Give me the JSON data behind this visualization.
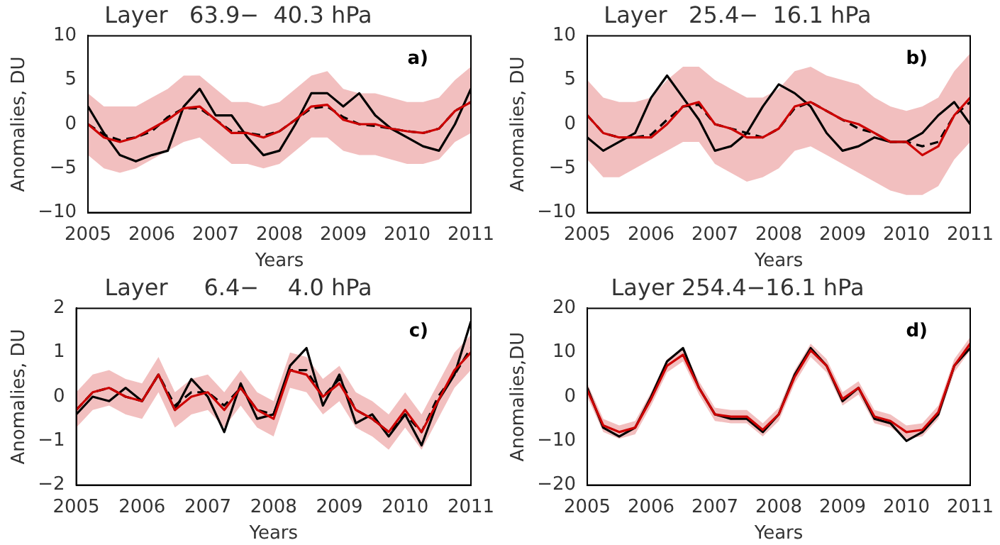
{
  "chart_data": [
    {
      "type": "line",
      "title": "Layer   63.9−  40.3 hPa",
      "xlabel": "Years",
      "ylabel": "Anomalies, DU",
      "annotations": [
        "a)"
      ],
      "legend": false,
      "grid": false,
      "x": [
        2005,
        2005.25,
        2005.5,
        2005.75,
        2006,
        2006.25,
        2006.5,
        2006.75,
        2007,
        2007.25,
        2007.5,
        2007.75,
        2008,
        2008.25,
        2008.5,
        2008.75,
        2009,
        2009.25,
        2009.5,
        2009.75,
        2010,
        2010.25,
        2010.5,
        2010.75,
        2011
      ],
      "xlim": [
        2005,
        2011
      ],
      "xticks": [
        2005,
        2006,
        2007,
        2008,
        2009,
        2010,
        2011
      ],
      "ylim": [
        -10,
        10
      ],
      "yticks": [
        -10,
        -5,
        0,
        5,
        10
      ],
      "series": [
        {
          "color": "#cc0000",
          "values": [
            0,
            -1.5,
            -2,
            -1.5,
            -0.5,
            0.5,
            1.8,
            2,
            0.5,
            -1,
            -1,
            -1.5,
            -0.8,
            0.5,
            2,
            2.2,
            0.5,
            0,
            0,
            -0.5,
            -0.8,
            -1,
            -0.5,
            1.5,
            2.5
          ],
          "lower": [
            -3.5,
            -5,
            -5.5,
            -5,
            -4,
            -3,
            -2,
            -1.5,
            -3,
            -4.5,
            -4.5,
            -5,
            -4.5,
            -3,
            -1.5,
            -1.5,
            -3,
            -3.5,
            -3.5,
            -4,
            -4.5,
            -4.5,
            -4,
            -2,
            -1
          ],
          "upper": [
            3.5,
            2,
            2,
            2,
            3,
            4,
            5.5,
            5.5,
            4,
            2.5,
            2.5,
            2,
            2.5,
            4,
            5.5,
            6,
            4,
            3.5,
            3.5,
            3,
            2.5,
            2.5,
            3,
            5,
            6.5
          ]
        },
        {
          "color": "#000000",
          "line_style": "dashed",
          "values": [
            0,
            -1.2,
            -1.8,
            -1.5,
            -0.8,
            0.8,
            1.8,
            1.8,
            0.5,
            -0.8,
            -1,
            -1.3,
            -0.8,
            0.5,
            1.8,
            2,
            0.8,
            0,
            -0.2,
            -0.5,
            -0.8,
            -1,
            -0.5,
            1.5,
            2.5
          ]
        },
        {
          "color": "#000000",
          "values": [
            2,
            -1,
            -3.5,
            -4.2,
            -3.5,
            -3,
            2,
            4,
            1,
            1,
            -1.5,
            -3.5,
            -3,
            0,
            3.5,
            3.5,
            2,
            3.5,
            1,
            -0.5,
            -1.5,
            -2.5,
            -3,
            0,
            4
          ]
        }
      ]
    },
    {
      "type": "line",
      "title": "Layer   25.4−  16.1 hPa",
      "xlabel": "Years",
      "ylabel": "Anomalies, DU",
      "annotations": [
        "b)"
      ],
      "legend": false,
      "grid": false,
      "x": [
        2005,
        2005.25,
        2005.5,
        2005.75,
        2006,
        2006.25,
        2006.5,
        2006.75,
        2007,
        2007.25,
        2007.5,
        2007.75,
        2008,
        2008.25,
        2008.5,
        2008.75,
        2009,
        2009.25,
        2009.5,
        2009.75,
        2010,
        2010.25,
        2010.5,
        2010.75,
        2011
      ],
      "xlim": [
        2005,
        2011
      ],
      "xticks": [
        2005,
        2006,
        2007,
        2008,
        2009,
        2010,
        2011
      ],
      "ylim": [
        -10,
        10
      ],
      "yticks": [
        -10,
        -5,
        0,
        5,
        10
      ],
      "series": [
        {
          "color": "#cc0000",
          "values": [
            1,
            -1,
            -1.5,
            -1.5,
            -1.5,
            0,
            2,
            2.5,
            0,
            -0.5,
            -1.5,
            -1.5,
            -0.5,
            2,
            2.5,
            1.5,
            0.5,
            0,
            -1,
            -2,
            -2,
            -3.5,
            -2.5,
            1,
            3
          ],
          "lower": [
            -4,
            -6,
            -6,
            -5,
            -4,
            -3,
            -2,
            -2,
            -4.5,
            -5.5,
            -6.5,
            -6,
            -5,
            -3,
            -2.5,
            -3.5,
            -4.5,
            -5.5,
            -6.5,
            -7.5,
            -8,
            -8,
            -7,
            -4,
            -2
          ],
          "upper": [
            5,
            3,
            2.5,
            2.5,
            3,
            5,
            6.5,
            6.5,
            5,
            4,
            3,
            3,
            4,
            6,
            6.5,
            5.5,
            5,
            4.5,
            3,
            2,
            1.5,
            2,
            3,
            6,
            8
          ]
        },
        {
          "color": "#000000",
          "line_style": "dashed",
          "values": [
            1,
            -1,
            -1.5,
            -1.5,
            -1.2,
            0.5,
            2,
            2.2,
            0,
            -0.5,
            -1,
            -1.5,
            -0.5,
            1.8,
            2.5,
            1.5,
            0.5,
            -0.5,
            -1,
            -2,
            -2,
            -2.5,
            -2,
            1,
            2.5
          ]
        },
        {
          "color": "#000000",
          "values": [
            -1.5,
            -3,
            -2,
            -1,
            3,
            5.5,
            3,
            0.5,
            -3,
            -2.5,
            -1,
            2,
            4.5,
            3.5,
            2,
            -1,
            -3,
            -2.5,
            -1.5,
            -2,
            -2,
            -1,
            1,
            2.5,
            0
          ]
        }
      ]
    },
    {
      "type": "line",
      "title": "Layer     6.4−    4.0 hPa",
      "xlabel": "Years",
      "ylabel": "Anomalies, DU",
      "annotations": [
        "c)"
      ],
      "legend": false,
      "grid": false,
      "x": [
        2005,
        2005.25,
        2005.5,
        2005.75,
        2006,
        2006.25,
        2006.5,
        2006.75,
        2007,
        2007.25,
        2007.5,
        2007.75,
        2008,
        2008.25,
        2008.5,
        2008.75,
        2009,
        2009.25,
        2009.5,
        2009.75,
        2010,
        2010.25,
        2010.5,
        2010.75,
        2011
      ],
      "xlim": [
        2005,
        2011
      ],
      "xticks": [
        2005,
        2006,
        2007,
        2008,
        2009,
        2010,
        2011
      ],
      "ylim": [
        -2,
        2
      ],
      "yticks": [
        -2,
        -1,
        0,
        1,
        2
      ],
      "series": [
        {
          "color": "#cc0000",
          "values": [
            -0.3,
            0.1,
            0.2,
            0,
            -0.1,
            0.5,
            -0.3,
            0,
            0.1,
            -0.3,
            0.2,
            -0.3,
            -0.5,
            0.6,
            0.5,
            0,
            0.3,
            -0.3,
            -0.5,
            -0.8,
            -0.3,
            -0.8,
            -0.1,
            0.6,
            1
          ],
          "lower": [
            -0.7,
            -0.3,
            -0.2,
            -0.4,
            -0.5,
            0.1,
            -0.7,
            -0.4,
            -0.3,
            -0.7,
            -0.2,
            -0.7,
            -0.9,
            0.2,
            0.1,
            -0.4,
            -0.1,
            -0.7,
            -0.9,
            -1.2,
            -0.7,
            -1.2,
            -0.5,
            0.2,
            0.6
          ],
          "upper": [
            0.1,
            0.5,
            0.6,
            0.4,
            0.3,
            0.9,
            0.1,
            0.4,
            0.5,
            0.1,
            0.6,
            0.1,
            -0.1,
            1,
            0.9,
            0.4,
            0.7,
            0.1,
            -0.1,
            -0.4,
            0.1,
            -0.4,
            0.3,
            1,
            1.4
          ]
        },
        {
          "color": "#000000",
          "line_style": "dashed",
          "values": [
            -0.3,
            0.1,
            0.2,
            0,
            -0.1,
            0.5,
            -0.2,
            0.1,
            0.1,
            -0.2,
            0.2,
            -0.3,
            -0.4,
            0.6,
            0.6,
            0,
            0.4,
            -0.3,
            -0.5,
            -0.8,
            -0.4,
            -0.8,
            0,
            0.5,
            1.1
          ]
        },
        {
          "color": "#000000",
          "values": [
            -0.4,
            0,
            -0.1,
            0.2,
            -0.1,
            0.5,
            -0.3,
            0.4,
            0,
            -0.8,
            0.3,
            -0.5,
            -0.4,
            0.7,
            1.1,
            -0.2,
            0.5,
            -0.6,
            -0.4,
            -0.9,
            -0.4,
            -1.1,
            -0.1,
            0.5,
            1.7
          ]
        }
      ]
    },
    {
      "type": "line",
      "title": "Layer 254.4−16.1 hPa",
      "xlabel": "Years",
      "ylabel": "Anomalies,DU",
      "annotations": [
        "d)"
      ],
      "legend": false,
      "grid": false,
      "x": [
        2005,
        2005.25,
        2005.5,
        2005.75,
        2006,
        2006.25,
        2006.5,
        2006.75,
        2007,
        2007.25,
        2007.5,
        2007.75,
        2008,
        2008.25,
        2008.5,
        2008.75,
        2009,
        2009.25,
        2009.5,
        2009.75,
        2010,
        2010.25,
        2010.5,
        2010.75,
        2011
      ],
      "xlim": [
        2005,
        2011
      ],
      "xticks": [
        2005,
        2006,
        2007,
        2008,
        2009,
        2010,
        2011
      ],
      "ylim": [
        -20,
        20
      ],
      "yticks": [
        -20,
        -10,
        0,
        10,
        20
      ],
      "series": [
        {
          "color": "#cc0000",
          "values": [
            1.5,
            -6.5,
            -8,
            -7,
            -0.5,
            7,
            9.5,
            2,
            -4,
            -4.5,
            -4.5,
            -7.5,
            -4,
            4.5,
            10.5,
            7,
            -0.5,
            2,
            -4.5,
            -5.5,
            -8,
            -7.5,
            -3.5,
            7,
            12
          ],
          "lower": [
            0,
            -8,
            -9.5,
            -8.5,
            -2,
            5.5,
            8,
            0.5,
            -5.5,
            -6,
            -6,
            -9,
            -5.5,
            3,
            9,
            5.5,
            -2,
            0.5,
            -6,
            -7,
            -9.5,
            -9,
            -5,
            5.5,
            10.5
          ],
          "upper": [
            3,
            -5,
            -6.5,
            -5.5,
            1,
            8.5,
            11,
            3.5,
            -2.5,
            -3,
            -3,
            -6,
            -2.5,
            6,
            12,
            8.5,
            1,
            3.5,
            -3,
            -4,
            -6.5,
            -6,
            -2,
            8.5,
            13.5
          ]
        },
        {
          "color": "#000000",
          "values": [
            2,
            -7,
            -9,
            -7,
            0,
            8,
            11,
            2,
            -4,
            -5,
            -5,
            -8,
            -4,
            5,
            11,
            7,
            -1,
            2,
            -5,
            -6,
            -10,
            -8,
            -4,
            7,
            11
          ]
        }
      ]
    }
  ]
}
